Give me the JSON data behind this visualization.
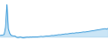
{
  "values": [
    0.1,
    0.12,
    0.14,
    0.18,
    0.8,
    2.8,
    0.7,
    0.3,
    0.12,
    0.08,
    0.06,
    0.05,
    -0.05,
    -0.08,
    -0.06,
    -0.04,
    -0.08,
    -0.1,
    -0.08,
    -0.06,
    -0.05,
    -0.06,
    -0.04,
    -0.05,
    -0.03,
    -0.04,
    -0.02,
    -0.03,
    -0.01,
    0.0,
    0.02,
    0.0,
    0.01,
    0.03,
    0.05,
    0.04,
    0.06,
    0.08,
    0.1,
    0.09,
    0.11,
    0.13,
    0.15,
    0.17,
    0.16,
    0.18,
    0.2,
    0.22,
    0.24,
    0.23,
    0.25,
    0.27,
    0.29,
    0.31,
    0.3,
    0.32,
    0.34,
    0.33,
    0.35,
    0.37,
    0.39,
    0.41,
    0.4,
    0.42,
    0.44,
    0.46,
    0.48,
    0.5,
    0.52,
    0.54,
    0.56,
    0.58,
    0.6,
    0.62,
    0.64,
    0.66,
    0.68,
    0.7,
    0.65,
    0.72
  ],
  "line_color": "#3a9ad9",
  "fill_color": "#a8d4f0",
  "background_color": "#ffffff",
  "linewidth": 0.6,
  "ylim": [
    -0.3,
    3.2
  ]
}
